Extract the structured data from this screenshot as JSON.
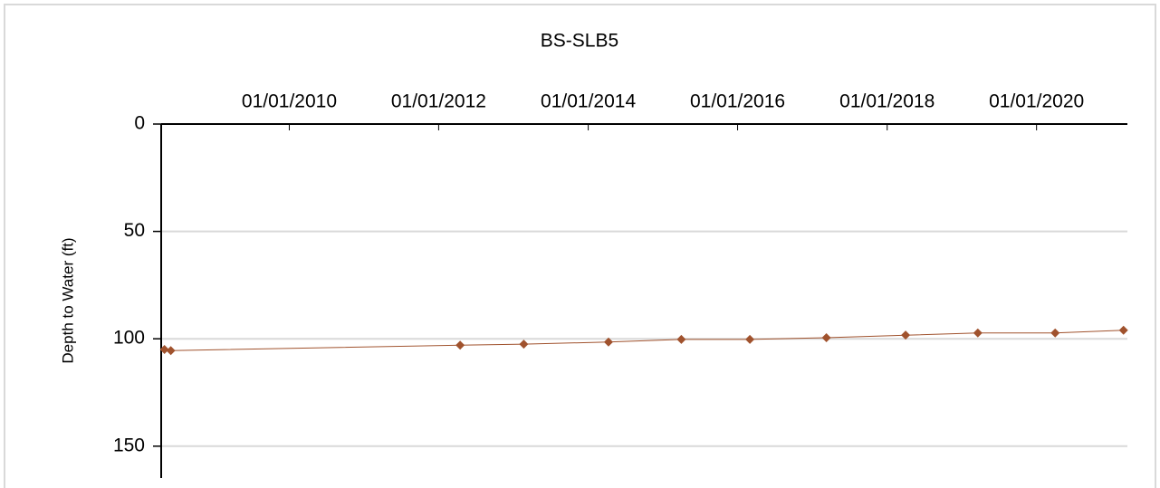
{
  "chart_data": {
    "type": "line",
    "title": "BS-SLB5",
    "y_label": "Depth to Water (ft)",
    "x": [
      "2008-05-01",
      "2008-06-01",
      "2012-04-15",
      "2013-02-20",
      "2014-04-10",
      "2015-04-01",
      "2016-03-01",
      "2017-03-10",
      "2018-04-01",
      "2019-03-20",
      "2020-04-01",
      "2021-03-01"
    ],
    "series": [
      {
        "name": "BS-SLB5",
        "color": "#a0522d",
        "values": [
          105,
          105.5,
          103,
          102.5,
          101.5,
          100.3,
          100.3,
          99.5,
          98.3,
          97.3,
          97.3,
          96
        ]
      }
    ],
    "xlim": [
      "2008-04-15",
      "2021-03-20"
    ],
    "xticks": [
      {
        "value": "2010-01-01",
        "label": "01/01/2010"
      },
      {
        "value": "2012-01-01",
        "label": "01/01/2012"
      },
      {
        "value": "2014-01-01",
        "label": "01/01/2014"
      },
      {
        "value": "2016-01-01",
        "label": "01/01/2016"
      },
      {
        "value": "2018-01-01",
        "label": "01/01/2018"
      },
      {
        "value": "2020-01-01",
        "label": "01/01/2020"
      }
    ],
    "ylim": [
      0,
      164
    ],
    "yticks": [
      0,
      50,
      100,
      150
    ],
    "y_inverted": true,
    "grid": true
  }
}
